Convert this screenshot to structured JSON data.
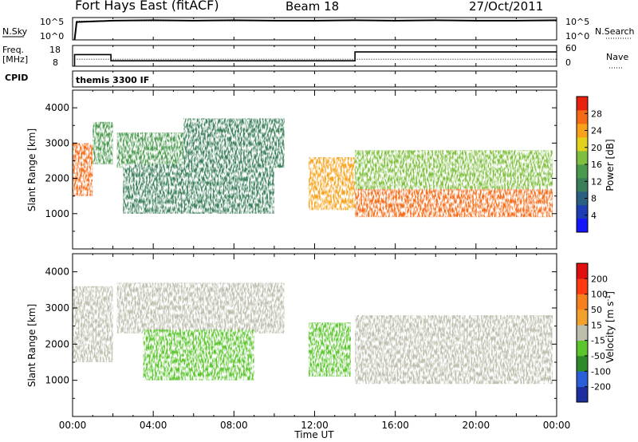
{
  "header": {
    "station": "Fort Hays East (fitACF)",
    "beam": "Beam 18",
    "date": "27/Oct/2011"
  },
  "strip_labels": {
    "nsky": "N.Sky",
    "nsky_ticks": [
      "10^5",
      "10^0"
    ],
    "nsearch": "N.Search",
    "nsearch_ticks": [
      "10^5",
      "10^0"
    ],
    "freq": "Freq.",
    "freq_unit": "[MHz]",
    "freq_ticks": [
      "18",
      "8"
    ],
    "nave": "Nave",
    "nave_ticks": [
      "60",
      "0"
    ],
    "cpid": "CPID",
    "cpid_value": "themis 3300 IF"
  },
  "chart_data": [
    {
      "type": "line",
      "name": "noise-strip",
      "y_scale": "log",
      "x_unit": "hours UT",
      "series": [
        {
          "name": "N.Sky",
          "x": [
            0.1,
            0.2,
            2,
            4,
            6,
            8,
            10,
            12,
            14,
            16,
            18,
            20,
            22,
            24
          ],
          "y": [
            1,
            10000,
            20000,
            25000,
            20000,
            25000,
            20000,
            20000,
            25000,
            20000,
            25000,
            20000,
            20000,
            25000
          ]
        },
        {
          "name": "N.Search",
          "x": [
            0.2,
            2,
            4,
            6,
            8,
            10,
            12,
            14,
            16,
            18,
            20,
            22,
            24
          ],
          "y": [
            15000,
            20000,
            18000,
            20000,
            18000,
            20000,
            18000,
            20000,
            18000,
            20000,
            18000,
            20000,
            18000
          ]
        }
      ]
    },
    {
      "type": "line",
      "name": "frequency-strip",
      "x_unit": "hours UT",
      "series": [
        {
          "name": "Freq.",
          "x": [
            0.1,
            0.1,
            1.9,
            1.9,
            14.0,
            14.0,
            24
          ],
          "y": [
            8,
            13.6,
            13.6,
            10.6,
            10.6,
            14.9,
            14.9
          ],
          "ylim": [
            8,
            18
          ]
        },
        {
          "name": "Nave",
          "x": [
            0.1,
            24
          ],
          "y": [
            20,
            20
          ],
          "ylim": [
            0,
            60
          ]
        }
      ]
    },
    {
      "type": "heatmap",
      "name": "power",
      "xlabel": "",
      "ylabel": "Slant Range [km]",
      "xlim": [
        0,
        24
      ],
      "ylim": [
        0,
        4500
      ],
      "yticks": [
        1000,
        2000,
        3000,
        4000
      ],
      "colorbar": {
        "label": "Power [dB]",
        "ticks": [
          "4",
          "8",
          "12",
          "16",
          "20",
          "24",
          "28"
        ],
        "range": [
          0,
          32
        ],
        "colors": [
          "#1414ff",
          "#1e3cb4",
          "#29607f",
          "#3a7f5a",
          "#4a9a4e",
          "#7fbf3f",
          "#e2d21c",
          "#f7a21a",
          "#f56a16",
          "#e8210f"
        ]
      },
      "regions": [
        {
          "t": [
            0.0,
            1.0
          ],
          "r": [
            1500,
            3000
          ],
          "power": 26
        },
        {
          "t": [
            1.0,
            2.0
          ],
          "r": [
            2400,
            3600
          ],
          "power": 15
        },
        {
          "t": [
            2.2,
            5.5
          ],
          "r": [
            2300,
            3300
          ],
          "power": 13
        },
        {
          "t": [
            5.5,
            10.5
          ],
          "r": [
            2300,
            3700
          ],
          "power": 12
        },
        {
          "t": [
            2.5,
            10.0
          ],
          "r": [
            1000,
            2400
          ],
          "power": 11
        },
        {
          "t": [
            11.7,
            14.0
          ],
          "r": [
            1100,
            2600
          ],
          "power": 25
        },
        {
          "t": [
            14.0,
            23.8
          ],
          "r": [
            900,
            1700
          ],
          "power": 27
        },
        {
          "t": [
            14.0,
            23.8
          ],
          "r": [
            1700,
            2800
          ],
          "power": 17
        }
      ]
    },
    {
      "type": "heatmap",
      "name": "velocity",
      "xlabel": "Time UT",
      "ylabel": "Slant Range [km]",
      "xlim": [
        0,
        24
      ],
      "ylim": [
        0,
        4500
      ],
      "xticks": [
        "00:00",
        "04:00",
        "08:00",
        "12:00",
        "16:00",
        "20:00",
        "00:00"
      ],
      "yticks": [
        1000,
        2000,
        3000,
        4000
      ],
      "colorbar": {
        "label": "Velocity [m s^-1]",
        "ticks": [
          "200",
          "100",
          "50",
          "15",
          "-15",
          "-50",
          "-100",
          "-200"
        ],
        "colors": [
          "#1d2f9e",
          "#2b5ed9",
          "#2c8a2a",
          "#5cc52e",
          "#bebeae",
          "#f2a12d",
          "#f6801e",
          "#ff3a10",
          "#e01010"
        ]
      },
      "regions": [
        {
          "t": [
            0.0,
            2.0
          ],
          "r": [
            1500,
            3600
          ],
          "velocity": 0
        },
        {
          "t": [
            2.2,
            10.5
          ],
          "r": [
            2300,
            3700
          ],
          "velocity": 0
        },
        {
          "t": [
            3.5,
            9.0
          ],
          "r": [
            1000,
            2400
          ],
          "velocity": 40
        },
        {
          "t": [
            11.7,
            13.8
          ],
          "r": [
            1100,
            2600
          ],
          "velocity": 45
        },
        {
          "t": [
            14.0,
            23.8
          ],
          "r": [
            900,
            2800
          ],
          "velocity": 0
        }
      ]
    }
  ]
}
